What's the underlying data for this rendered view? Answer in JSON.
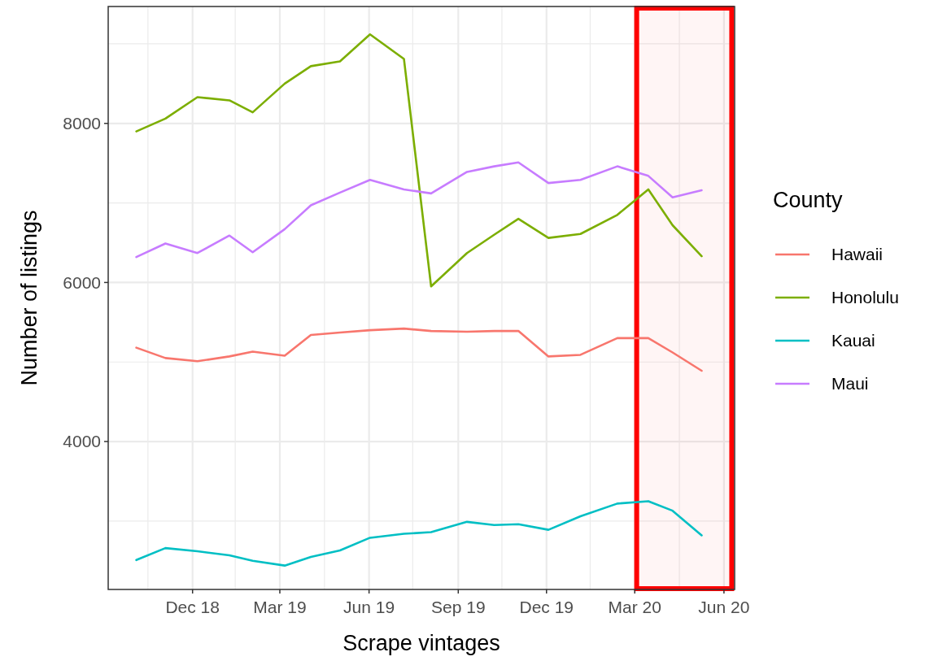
{
  "chart_data": {
    "type": "line",
    "xlabel": "Scrape vintages",
    "ylabel": "Number of listings",
    "legend_title": "County",
    "legend": "right",
    "grid": true,
    "line_style": "solid",
    "marker": "none",
    "x": [
      "2018-10-04",
      "2018-11-03",
      "2018-12-06",
      "2019-01-08",
      "2019-02-01",
      "2019-03-06",
      "2019-04-02",
      "2019-05-02",
      "2019-06-02",
      "2019-07-07",
      "2019-08-04",
      "2019-09-10",
      "2019-10-08",
      "2019-11-02",
      "2019-12-03",
      "2020-01-05",
      "2020-02-12",
      "2020-03-15",
      "2020-04-09",
      "2020-05-09"
    ],
    "xlim": [
      "2018-09-05",
      "2020-06-12"
    ],
    "xticks": [
      {
        "value": "2018-10-16",
        "label": null
      },
      {
        "value": "2018-12-01",
        "label": "Dec 18"
      },
      {
        "value": "2019-01-14",
        "label": null
      },
      {
        "value": "2019-03-01",
        "label": "Mar 19"
      },
      {
        "value": "2019-04-16",
        "label": null
      },
      {
        "value": "2019-06-01",
        "label": "Jun 19"
      },
      {
        "value": "2019-07-16",
        "label": null
      },
      {
        "value": "2019-09-01",
        "label": "Sep 19"
      },
      {
        "value": "2019-10-16",
        "label": null
      },
      {
        "value": "2019-12-01",
        "label": "Dec 19"
      },
      {
        "value": "2020-01-15",
        "label": null
      },
      {
        "value": "2020-03-01",
        "label": "Mar 20"
      },
      {
        "value": "2020-04-16",
        "label": null
      },
      {
        "value": "2020-06-01",
        "label": "Jun 20"
      }
    ],
    "ylim": [
      2140,
      9470
    ],
    "yticks": [
      {
        "value": 3000,
        "label": null
      },
      4000,
      {
        "value": 5000,
        "label": null
      },
      6000,
      {
        "value": 7000,
        "label": null
      },
      8000,
      {
        "value": 9000,
        "label": null
      }
    ],
    "series": [
      {
        "name": "Hawaii",
        "color": "#f8766d",
        "values": [
          5180,
          5050,
          5010,
          5070,
          5130,
          5080,
          5340,
          5370,
          5400,
          5420,
          5390,
          5380,
          5390,
          5390,
          5070,
          5090,
          5300,
          5300,
          5120,
          4890
        ]
      },
      {
        "name": "Honolulu",
        "color": "#7cae00",
        "values": [
          7900,
          8060,
          8330,
          8290,
          8140,
          8500,
          8720,
          8780,
          9120,
          8810,
          5950,
          6370,
          6600,
          6800,
          6560,
          6610,
          6850,
          7170,
          6720,
          6330
        ]
      },
      {
        "name": "Kauai",
        "color": "#00bfc4",
        "values": [
          2510,
          2660,
          2620,
          2570,
          2500,
          2440,
          2550,
          2630,
          2790,
          2840,
          2860,
          2990,
          2950,
          2960,
          2890,
          3060,
          3220,
          3250,
          3130,
          2820
        ]
      },
      {
        "name": "Maui",
        "color": "#c77cff",
        "values": [
          6320,
          6490,
          6370,
          6590,
          6380,
          6670,
          6970,
          7130,
          7290,
          7170,
          7120,
          7390,
          7460,
          7510,
          7250,
          7290,
          7460,
          7340,
          7070,
          7160
        ]
      }
    ],
    "bands": [
      {
        "axis": "x",
        "from": "2020-03-03",
        "to": "2020-06-09",
        "color": "#ff0000"
      }
    ]
  }
}
